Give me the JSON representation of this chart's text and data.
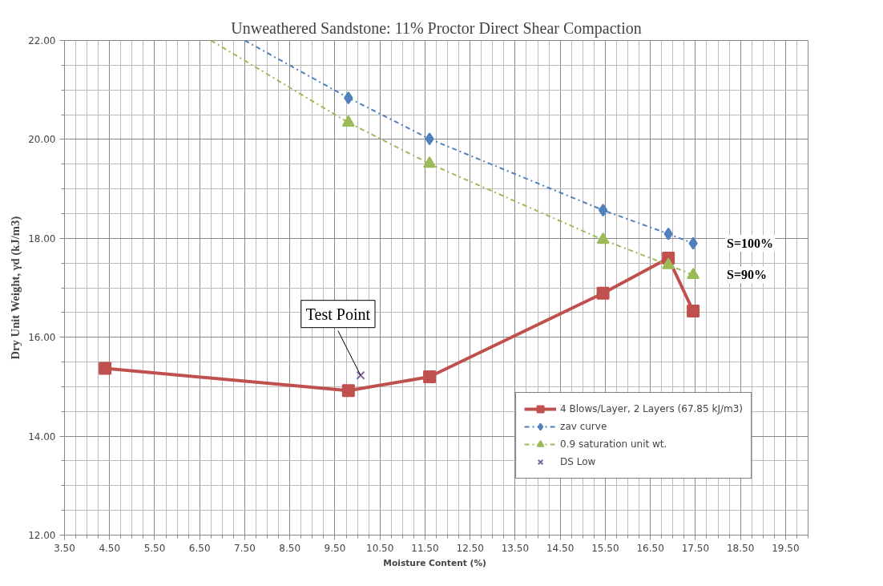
{
  "chart_data": {
    "type": "line",
    "title": "Unweathered Sandstone: 11% Proctor Direct Shear Compaction",
    "xlabel": "Moisture Content  (%)",
    "ylabel": "Dry Unit Weight, γd (kJ/m3)",
    "xlim": [
      3.5,
      20.0
    ],
    "xticks": [
      {
        "value": 3.5,
        "label": "3.50"
      },
      {
        "value": 4.5,
        "label": "4.50"
      },
      {
        "value": 5.5,
        "label": "5.50"
      },
      {
        "value": 6.5,
        "label": "6.50"
      },
      {
        "value": 7.5,
        "label": "7.50"
      },
      {
        "value": 8.5,
        "label": "8.50"
      },
      {
        "value": 9.5,
        "label": "9.50"
      },
      {
        "value": 10.5,
        "label": "10.50"
      },
      {
        "value": 11.5,
        "label": "11.50"
      },
      {
        "value": 12.5,
        "label": "12.50"
      },
      {
        "value": 13.5,
        "label": "13.50"
      },
      {
        "value": 14.5,
        "label": "14.50"
      },
      {
        "value": 15.5,
        "label": "15.50"
      },
      {
        "value": 16.5,
        "label": "16.50"
      },
      {
        "value": 17.5,
        "label": "17.50"
      },
      {
        "value": 18.5,
        "label": "18.50"
      },
      {
        "value": 19.5,
        "label": "19.50"
      }
    ],
    "ylim": [
      12.0,
      22.0
    ],
    "yticks": [
      {
        "value": 12,
        "label": "12.00"
      },
      {
        "value": 14,
        "label": "14.00"
      },
      {
        "value": 16,
        "label": "16.00"
      },
      {
        "value": 18,
        "label": "18.00"
      },
      {
        "value": 20,
        "label": "20.00"
      },
      {
        "value": 22,
        "label": "22.00"
      }
    ],
    "grid": true,
    "legend": "bottom right",
    "series": [
      {
        "name": "4 Blows/Layer, 2 Layers (67.85 kJ/m3)",
        "color": "#c0504d",
        "marker": "square",
        "line_style": "solid",
        "x": [
          4.4,
          9.8,
          11.6,
          15.45,
          16.9,
          17.45
        ],
        "values": [
          15.37,
          14.92,
          15.2,
          16.89,
          17.6,
          16.53
        ]
      },
      {
        "name": "zav curve",
        "color": "#4f81bd",
        "marker": "diamond",
        "line_style": "dashed",
        "x": [
          9.8,
          11.6,
          15.45,
          16.9,
          17.45
        ],
        "values": [
          20.84,
          20.01,
          18.57,
          18.09,
          17.9
        ]
      },
      {
        "name": "0.9 saturation unit wt.",
        "color": "#9bbb59",
        "marker": "triangle",
        "line_style": "dashed",
        "x": [
          9.8,
          11.6,
          15.45,
          16.9,
          17.45
        ],
        "values": [
          20.34,
          19.51,
          17.97,
          17.46,
          17.26
        ]
      },
      {
        "name": "DS Low",
        "type": "scatter",
        "color": "#8064a2",
        "marker": "cross",
        "x": [
          10.07
        ],
        "values": [
          15.23
        ]
      },
      {
        "type": "line",
        "color": "#4f81bd",
        "marker": "none",
        "line_style": "dashed",
        "x": [
          7.5,
          9.8
        ],
        "values": [
          22.0,
          20.84
        ]
      },
      {
        "type": "line",
        "color": "#9bbb59",
        "marker": "none",
        "line_style": "dashed",
        "x": [
          6.75,
          9.8
        ],
        "values": [
          22.0,
          20.34
        ]
      }
    ],
    "annotations": [
      {
        "text": "Test Point",
        "x": 10.07,
        "y": 15.23
      },
      "S=100%",
      "S=90%"
    ]
  }
}
